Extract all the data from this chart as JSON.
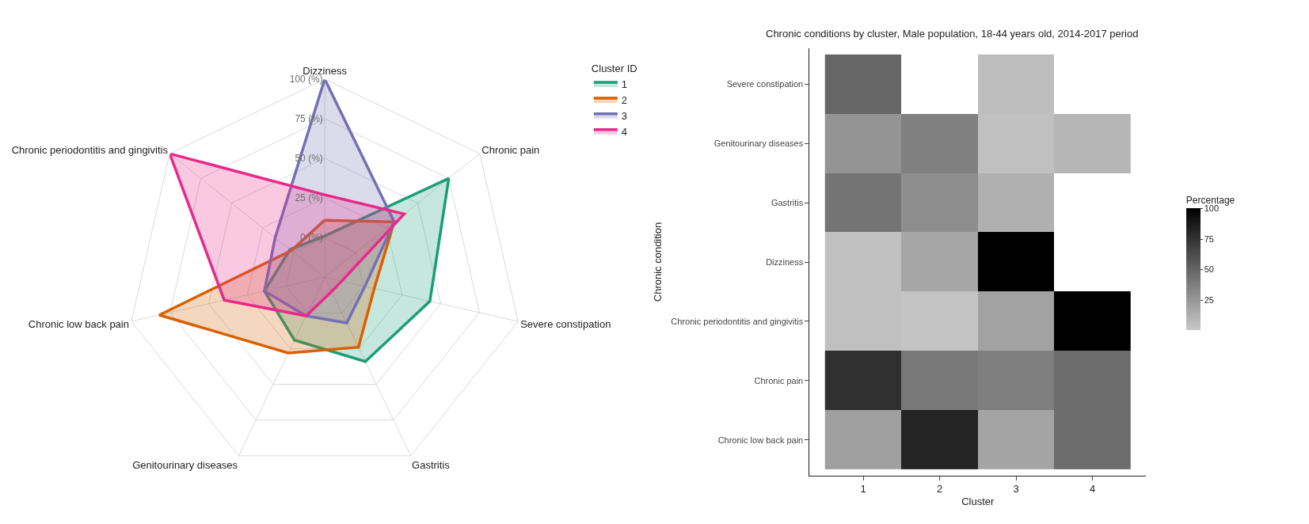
{
  "chart_data": [
    {
      "type": "radar",
      "categories": [
        "Dizziness",
        "Chronic pain",
        "Severe constipation",
        "Gastritis",
        "Genitourinary diseases",
        "Chronic low back pain",
        "Chronic periodontitis and gingivitis"
      ],
      "ylim": [
        -25,
        100
      ],
      "yticks": [
        {
          "value": 0,
          "label": "0 (%)"
        },
        {
          "value": 25,
          "label": "25 (%)"
        },
        {
          "value": 50,
          "label": "50 (%)"
        },
        {
          "value": 75,
          "label": "75 (%)"
        },
        {
          "value": 100,
          "label": "100 (%)"
        }
      ],
      "legend_title": "Cluster ID",
      "legend": "top right",
      "grid": true,
      "marker": "none",
      "line_style": "solid",
      "series": [
        {
          "name": "1",
          "color": "#1b9e77",
          "values": [
            1,
            75,
            43,
            34,
            19,
            14,
            3
          ]
        },
        {
          "name": "2",
          "color": "#d95f02",
          "values": [
            11,
            31,
            7,
            24,
            28,
            82,
            2
          ]
        },
        {
          "name": "3",
          "color": "#7570b3",
          "values": [
            100,
            31,
            1,
            7,
            2,
            14,
            15
          ]
        },
        {
          "name": "4",
          "color": "#e7298a",
          "values": [
            27,
            39,
            -14,
            -15,
            2,
            40,
            100
          ]
        }
      ]
    },
    {
      "type": "heatmap",
      "title": "Chronic conditions by cluster, Male population, 18-44 years old, 2014-2017 period",
      "xlabel": "Cluster",
      "ylabel": "Chronic condition",
      "clabel": "Percentage",
      "categories": [
        "1",
        "2",
        "3",
        "4"
      ],
      "y_categories": [
        "Severe constipation",
        "Genitourinary diseases",
        "Gastritis",
        "Dizziness",
        "Chronic periodontitis and gingivitis",
        "Chronic pain",
        "Chronic low back pain"
      ],
      "cells": [
        [
          49,
          null,
          5,
          null
        ],
        [
          26,
          36,
          4,
          9
        ],
        [
          42,
          29,
          12,
          null
        ],
        [
          4,
          17,
          100,
          null
        ],
        [
          4,
          2,
          19,
          100
        ],
        [
          76,
          40,
          37,
          46
        ],
        [
          20,
          82,
          18,
          46
        ]
      ],
      "clim": [
        0,
        100
      ],
      "cticks": [
        25,
        50,
        75,
        100
      ]
    }
  ]
}
